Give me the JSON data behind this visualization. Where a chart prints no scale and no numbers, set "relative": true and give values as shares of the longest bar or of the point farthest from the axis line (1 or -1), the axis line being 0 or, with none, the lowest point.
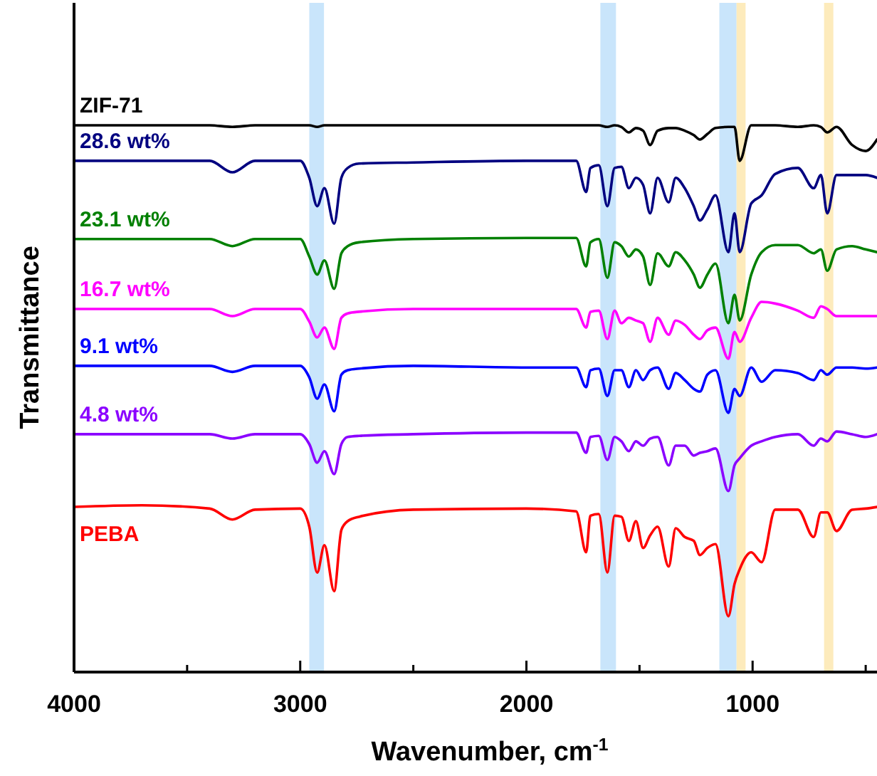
{
  "chart_data": {
    "type": "line",
    "relative": true,
    "xlabel": "Wavenumber, cm$^{-1}$",
    "ylabel": "Transmittance",
    "xlim": [
      4000,
      450
    ],
    "xticks": [
      4000,
      {
        "value": 3500,
        "label": null
      },
      3000,
      {
        "value": 2500,
        "label": null
      },
      2000,
      {
        "value": 1500,
        "label": null
      },
      1000,
      {
        "value": 500,
        "label": null
      }
    ],
    "grid": false,
    "x": [
      4000,
      3700,
      3400,
      3300,
      3200,
      3000,
      2960,
      2925,
      2893,
      2850,
      2818,
      2790,
      2740,
      2500,
      2000,
      1780,
      1736,
      1717,
      1680,
      1642,
      1610,
      1580,
      1547,
      1516,
      1484,
      1453,
      1420,
      1371,
      1340,
      1300,
      1260,
      1233,
      1200,
      1164,
      1107,
      1080,
      1057,
      1006,
      960,
      900,
      800,
      730,
      698,
      670,
      629,
      560,
      500,
      450
    ],
    "series": [
      {
        "name": "ZIF-71",
        "color": "#000000",
        "values": [
          1,
          1,
          1,
          0.997,
          1,
          1,
          1,
          0.997,
          1,
          1,
          1,
          1,
          1,
          1,
          1,
          1,
          1,
          1,
          1,
          0.997,
          1,
          0.997,
          0.987,
          0.995,
          0.99,
          0.964,
          0.99,
          0.995,
          0.995,
          0.99,
          0.982,
          0.974,
          0.984,
          0.995,
          0.997,
          0.997,
          0.935,
          1,
          1,
          1,
          0.997,
          1,
          0.997,
          0.987,
          0.997,
          0.964,
          0.953,
          0.974
        ]
      },
      {
        "name": "28.6 wt%",
        "color": "#000080",
        "values": [
          0.935,
          0.935,
          0.935,
          0.914,
          0.935,
          0.935,
          0.904,
          0.852,
          0.885,
          0.82,
          0.904,
          0.922,
          0.93,
          0.932,
          0.935,
          0.935,
          0.878,
          0.922,
          0.927,
          0.852,
          0.922,
          0.924,
          0.885,
          0.904,
          0.891,
          0.839,
          0.904,
          0.859,
          0.904,
          0.885,
          0.852,
          0.826,
          0.846,
          0.872,
          0.768,
          0.839,
          0.768,
          0.857,
          0.872,
          0.911,
          0.922,
          0.885,
          0.909,
          0.839,
          0.909,
          0.909,
          0.909,
          0.904
        ]
      },
      {
        "name": "23.1 wt%",
        "color": "#008000",
        "values": [
          0.792,
          0.792,
          0.792,
          0.779,
          0.792,
          0.792,
          0.76,
          0.727,
          0.753,
          0.701,
          0.766,
          0.779,
          0.786,
          0.792,
          0.794,
          0.794,
          0.742,
          0.786,
          0.792,
          0.721,
          0.786,
          0.779,
          0.76,
          0.773,
          0.76,
          0.708,
          0.766,
          0.742,
          0.768,
          0.753,
          0.727,
          0.703,
          0.727,
          0.747,
          0.638,
          0.69,
          0.643,
          0.727,
          0.768,
          0.781,
          0.781,
          0.766,
          0.773,
          0.734,
          0.773,
          0.779,
          0.773,
          0.768
        ]
      },
      {
        "name": "16.7 wt%",
        "color": "#ff00ff",
        "values": [
          0.664,
          0.664,
          0.664,
          0.651,
          0.664,
          0.664,
          0.641,
          0.612,
          0.63,
          0.591,
          0.648,
          0.656,
          0.659,
          0.664,
          0.664,
          0.664,
          0.63,
          0.659,
          0.661,
          0.609,
          0.661,
          0.638,
          0.648,
          0.643,
          0.638,
          0.604,
          0.648,
          0.617,
          0.643,
          0.635,
          0.617,
          0.609,
          0.625,
          0.63,
          0.573,
          0.622,
          0.604,
          0.648,
          0.677,
          0.674,
          0.661,
          0.648,
          0.669,
          0.664,
          0.651,
          0.651,
          0.651,
          0.651
        ]
      },
      {
        "name": "9.1 wt%",
        "color": "#0000ff",
        "values": [
          0.56,
          0.56,
          0.56,
          0.549,
          0.56,
          0.56,
          0.539,
          0.5,
          0.526,
          0.477,
          0.544,
          0.552,
          0.555,
          0.56,
          0.557,
          0.557,
          0.521,
          0.552,
          0.555,
          0.505,
          0.552,
          0.552,
          0.521,
          0.552,
          0.534,
          0.552,
          0.557,
          0.518,
          0.547,
          0.534,
          0.518,
          0.513,
          0.544,
          0.552,
          0.474,
          0.518,
          0.505,
          0.557,
          0.531,
          0.552,
          0.547,
          0.534,
          0.552,
          0.544,
          0.557,
          0.557,
          0.555,
          0.557
        ]
      },
      {
        "name": "4.8 wt%",
        "color": "#8b00ff",
        "values": [
          0.435,
          0.435,
          0.435,
          0.427,
          0.435,
          0.435,
          0.417,
          0.383,
          0.404,
          0.362,
          0.417,
          0.43,
          0.432,
          0.435,
          0.438,
          0.438,
          0.401,
          0.43,
          0.432,
          0.388,
          0.43,
          0.422,
          0.404,
          0.422,
          0.414,
          0.427,
          0.43,
          0.378,
          0.414,
          0.414,
          0.396,
          0.401,
          0.404,
          0.409,
          0.331,
          0.378,
          0.391,
          0.414,
          0.422,
          0.43,
          0.435,
          0.414,
          0.427,
          0.422,
          0.44,
          0.435,
          0.43,
          0.435
        ]
      },
      {
        "name": "PEBA",
        "color": "#ff0000",
        "values": [
          0.302,
          0.305,
          0.299,
          0.279,
          0.297,
          0.299,
          0.266,
          0.182,
          0.232,
          0.148,
          0.26,
          0.276,
          0.284,
          0.297,
          0.299,
          0.294,
          0.219,
          0.286,
          0.289,
          0.182,
          0.286,
          0.284,
          0.24,
          0.276,
          0.227,
          0.25,
          0.266,
          0.193,
          0.263,
          0.247,
          0.24,
          0.214,
          0.227,
          0.234,
          0.102,
          0.161,
          0.188,
          0.219,
          0.201,
          0.297,
          0.297,
          0.247,
          0.292,
          0.292,
          0.258,
          0.297,
          0.299,
          0.302
        ]
      }
    ],
    "bands": [
      {
        "axis": "x",
        "from": 2960,
        "to": 2895,
        "color": "#bfe0fa"
      },
      {
        "axis": "x",
        "from": 1673,
        "to": 1604,
        "color": "#bfe0fa"
      },
      {
        "axis": "x",
        "from": 1147,
        "to": 1071,
        "color": "#bfe0fa"
      },
      {
        "axis": "x",
        "from": 1071,
        "to": 1031,
        "color": "#fde7b0"
      },
      {
        "axis": "x",
        "from": 684,
        "to": 643,
        "color": "#fde7b0"
      }
    ]
  }
}
